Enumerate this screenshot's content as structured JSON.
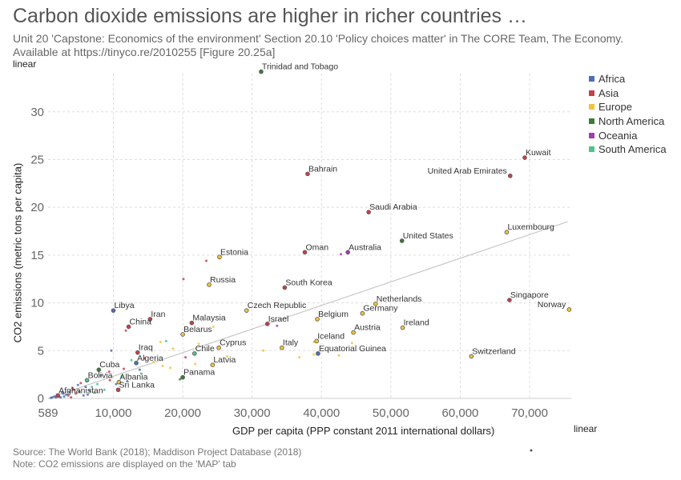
{
  "header": {
    "title": "Carbon dioxide emissions are higher in richer countries …",
    "subtitle": "Unit 20 'Capstone: Economics of the environment' Section 20.10 'Policy choices matter' in The CORE Team, The Economy. Available at https://tinyco.re/2010255 [Figure 20.25a]"
  },
  "controls": {
    "y_scale_label": "linear",
    "x_scale_label": "linear"
  },
  "footer": {
    "source": "Source: The World Bank (2018); Maddison Project Database (2018)",
    "note": "Note: CO2 emissions are displayed on the 'MAP' tab"
  },
  "colors": {
    "Africa": "#4c6fb4",
    "Asia": "#c4414b",
    "Europe": "#f2c33a",
    "North America": "#3e7a3a",
    "Oceania": "#a13bb0",
    "South America": "#4fc28a",
    "trend": "#c8c8c8",
    "grid": "#dddddd"
  },
  "chart_data": {
    "type": "scatter",
    "xlabel": "GDP per capita (PPP constant 2011 international dollars)",
    "ylabel": "CO2 emissions (metric tons per capita)",
    "xlim": [
      589,
      76000
    ],
    "ylim": [
      0,
      34
    ],
    "x_ticks": [
      {
        "value": 589,
        "label": "589"
      },
      {
        "value": 10000,
        "label": "10,000"
      },
      {
        "value": 20000,
        "label": "20,000"
      },
      {
        "value": 30000,
        "label": "30,000"
      },
      {
        "value": 40000,
        "label": "40,000"
      },
      {
        "value": 50000,
        "label": "50,000"
      },
      {
        "value": 60000,
        "label": "60,000"
      },
      {
        "value": 70000,
        "label": "70,000"
      }
    ],
    "y_ticks": [
      {
        "value": 0,
        "label": "0"
      },
      {
        "value": 5,
        "label": "5"
      },
      {
        "value": 10,
        "label": "10"
      },
      {
        "value": 15,
        "label": "15"
      },
      {
        "value": 20,
        "label": "20"
      },
      {
        "value": 25,
        "label": "25"
      },
      {
        "value": 30,
        "label": "30"
      }
    ],
    "grid": true,
    "legend_position": "top-right",
    "legend": [
      "Africa",
      "Asia",
      "Europe",
      "North America",
      "Oceania",
      "South America"
    ],
    "trend_line": {
      "x": [
        589,
        75500
      ],
      "y": [
        0,
        18.5
      ]
    },
    "labeled_points": [
      {
        "label": "Trinidad and Tobago",
        "x": 31300,
        "y": 34.2,
        "region": "North America"
      },
      {
        "label": "Kuwait",
        "x": 69300,
        "y": 25.2,
        "region": "Asia"
      },
      {
        "label": "United Arab Emirates",
        "x": 67200,
        "y": 23.3,
        "region": "Asia",
        "label_side": "left"
      },
      {
        "label": "Bahrain",
        "x": 38000,
        "y": 23.5,
        "region": "Asia"
      },
      {
        "label": "Saudi Arabia",
        "x": 46800,
        "y": 19.5,
        "region": "Asia"
      },
      {
        "label": "Luxembourg",
        "x": 66700,
        "y": 17.4,
        "region": "Europe"
      },
      {
        "label": "United States",
        "x": 51600,
        "y": 16.5,
        "region": "North America"
      },
      {
        "label": "Oman",
        "x": 37600,
        "y": 15.3,
        "region": "Asia"
      },
      {
        "label": "Australia",
        "x": 43800,
        "y": 15.3,
        "region": "Oceania"
      },
      {
        "label": "Estonia",
        "x": 25300,
        "y": 14.8,
        "region": "Europe"
      },
      {
        "label": "Russia",
        "x": 23800,
        "y": 11.9,
        "region": "Europe"
      },
      {
        "label": "South Korea",
        "x": 34700,
        "y": 11.6,
        "region": "Asia"
      },
      {
        "label": "Singapore",
        "x": 67100,
        "y": 10.3,
        "region": "Asia"
      },
      {
        "label": "Norway",
        "x": 75700,
        "y": 9.3,
        "region": "Europe",
        "label_side": "left"
      },
      {
        "label": "Netherlands",
        "x": 47800,
        "y": 9.9,
        "region": "Europe"
      },
      {
        "label": "Czech Republic",
        "x": 29200,
        "y": 9.2,
        "region": "Europe"
      },
      {
        "label": "Germany",
        "x": 45900,
        "y": 8.9,
        "region": "Europe"
      },
      {
        "label": "Libya",
        "x": 10000,
        "y": 9.2,
        "region": "Africa"
      },
      {
        "label": "Belgium",
        "x": 39400,
        "y": 8.3,
        "region": "Europe"
      },
      {
        "label": "Iran",
        "x": 15300,
        "y": 8.3,
        "region": "Asia"
      },
      {
        "label": "Malaysia",
        "x": 21300,
        "y": 7.9,
        "region": "Asia"
      },
      {
        "label": "Israel",
        "x": 32200,
        "y": 7.8,
        "region": "Asia"
      },
      {
        "label": "China",
        "x": 12200,
        "y": 7.5,
        "region": "Asia"
      },
      {
        "label": "Ireland",
        "x": 51700,
        "y": 7.4,
        "region": "Europe"
      },
      {
        "label": "Austria",
        "x": 44600,
        "y": 6.9,
        "region": "Europe"
      },
      {
        "label": "Belarus",
        "x": 20000,
        "y": 6.7,
        "region": "Europe"
      },
      {
        "label": "Iceland",
        "x": 39300,
        "y": 6.0,
        "region": "Europe"
      },
      {
        "label": "Italy",
        "x": 34300,
        "y": 5.3,
        "region": "Europe"
      },
      {
        "label": "Cyprus",
        "x": 25200,
        "y": 5.3,
        "region": "Europe"
      },
      {
        "label": "Iraq",
        "x": 13500,
        "y": 4.8,
        "region": "Asia"
      },
      {
        "label": "Chile",
        "x": 21700,
        "y": 4.7,
        "region": "South America"
      },
      {
        "label": "Equatorial Guinea",
        "x": 39500,
        "y": 4.7,
        "region": "Africa"
      },
      {
        "label": "Switzerland",
        "x": 61600,
        "y": 4.4,
        "region": "Europe"
      },
      {
        "label": "Algeria",
        "x": 13300,
        "y": 3.7,
        "region": "Africa"
      },
      {
        "label": "Latvia",
        "x": 24300,
        "y": 3.5,
        "region": "Europe"
      },
      {
        "label": "Cuba",
        "x": 7900,
        "y": 3.0,
        "region": "North America"
      },
      {
        "label": "Panama",
        "x": 20000,
        "y": 2.2,
        "region": "North America"
      },
      {
        "label": "Bolivia",
        "x": 6200,
        "y": 1.9,
        "region": "South America"
      },
      {
        "label": "Albania",
        "x": 10800,
        "y": 1.7,
        "region": "Europe"
      },
      {
        "label": "Sri Lanka",
        "x": 10700,
        "y": 0.9,
        "region": "Asia"
      },
      {
        "label": "Afghanistan",
        "x": 2000,
        "y": 0.3,
        "region": "Asia"
      }
    ],
    "other_points": [
      {
        "x": 23400,
        "y": 14.4,
        "region": "Asia"
      },
      {
        "x": 20100,
        "y": 12.5,
        "region": "Asia"
      },
      {
        "x": 42800,
        "y": 15.1,
        "region": "Oceania"
      },
      {
        "x": 33600,
        "y": 7.6,
        "region": "Oceania"
      },
      {
        "x": 11800,
        "y": 7.1,
        "region": "Asia"
      },
      {
        "x": 9700,
        "y": 5.0,
        "region": "Africa"
      },
      {
        "x": 16800,
        "y": 5.9,
        "region": "Europe"
      },
      {
        "x": 17600,
        "y": 6.0,
        "region": "South America"
      },
      {
        "x": 24400,
        "y": 7.5,
        "region": "Europe"
      },
      {
        "x": 38900,
        "y": 5.9,
        "region": "Europe"
      },
      {
        "x": 44400,
        "y": 5.8,
        "region": "Europe"
      },
      {
        "x": 38900,
        "y": 4.6,
        "region": "Europe"
      },
      {
        "x": 42500,
        "y": 4.5,
        "region": "Europe"
      },
      {
        "x": 36800,
        "y": 4.3,
        "region": "Europe"
      },
      {
        "x": 31600,
        "y": 5.0,
        "region": "Europe"
      },
      {
        "x": 26400,
        "y": 4.4,
        "region": "Europe"
      },
      {
        "x": 22300,
        "y": 5.7,
        "region": "Europe"
      },
      {
        "x": 18600,
        "y": 5.2,
        "region": "Europe"
      },
      {
        "x": 20400,
        "y": 4.3,
        "region": "Asia"
      },
      {
        "x": 21800,
        "y": 3.6,
        "region": "Europe"
      },
      {
        "x": 17100,
        "y": 3.4,
        "region": "Europe"
      },
      {
        "x": 15800,
        "y": 3.8,
        "region": "Europe"
      },
      {
        "x": 18200,
        "y": 3.2,
        "region": "Europe"
      },
      {
        "x": 14500,
        "y": 4.2,
        "region": "Asia"
      },
      {
        "x": 12600,
        "y": 4.0,
        "region": "South America"
      },
      {
        "x": 14000,
        "y": 2.6,
        "region": "South America"
      },
      {
        "x": 13800,
        "y": 3.0,
        "region": "Africa"
      },
      {
        "x": 19600,
        "y": 2.0,
        "region": "North America"
      },
      {
        "x": 11500,
        "y": 3.1,
        "region": "Asia"
      },
      {
        "x": 9400,
        "y": 2.8,
        "region": "Asia"
      },
      {
        "x": 8200,
        "y": 2.4,
        "region": "Africa"
      },
      {
        "x": 11200,
        "y": 2.3,
        "region": "South America"
      },
      {
        "x": 12000,
        "y": 1.8,
        "region": "Africa"
      },
      {
        "x": 9500,
        "y": 1.9,
        "region": "Asia"
      },
      {
        "x": 7700,
        "y": 1.5,
        "region": "South America"
      },
      {
        "x": 10400,
        "y": 1.5,
        "region": "Africa"
      },
      {
        "x": 6900,
        "y": 1.2,
        "region": "South America"
      },
      {
        "x": 5300,
        "y": 1.6,
        "region": "Asia"
      },
      {
        "x": 4900,
        "y": 1.4,
        "region": "Africa"
      },
      {
        "x": 6000,
        "y": 1.2,
        "region": "Africa"
      },
      {
        "x": 8700,
        "y": 0.9,
        "region": "South America"
      },
      {
        "x": 6600,
        "y": 0.8,
        "region": "Africa"
      },
      {
        "x": 4300,
        "y": 0.9,
        "region": "Asia"
      },
      {
        "x": 3700,
        "y": 0.7,
        "region": "Africa"
      },
      {
        "x": 4600,
        "y": 0.5,
        "region": "Asia"
      },
      {
        "x": 3200,
        "y": 0.4,
        "region": "Africa"
      },
      {
        "x": 2600,
        "y": 0.6,
        "region": "Africa"
      },
      {
        "x": 3500,
        "y": 0.3,
        "region": "Asia"
      },
      {
        "x": 2200,
        "y": 0.2,
        "region": "Africa"
      },
      {
        "x": 1700,
        "y": 0.1,
        "region": "Africa"
      },
      {
        "x": 1500,
        "y": 0.2,
        "region": "Africa"
      },
      {
        "x": 1200,
        "y": 0.1,
        "region": "Africa"
      },
      {
        "x": 2400,
        "y": 0.1,
        "region": "Africa"
      },
      {
        "x": 2900,
        "y": 0.2,
        "region": "Africa"
      },
      {
        "x": 1900,
        "y": 0.4,
        "region": "Africa"
      },
      {
        "x": 3900,
        "y": 0.1,
        "region": "Asia"
      },
      {
        "x": 5700,
        "y": 0.3,
        "region": "Africa"
      },
      {
        "x": 1000,
        "y": 0.05,
        "region": "Africa"
      },
      {
        "x": 2800,
        "y": 0.5,
        "region": "Africa"
      },
      {
        "x": 4100,
        "y": 1.1,
        "region": "Asia"
      },
      {
        "x": 5100,
        "y": 0.7,
        "region": "North America"
      },
      {
        "x": 7300,
        "y": 0.6,
        "region": "South America"
      },
      {
        "x": 6300,
        "y": 0.4,
        "region": "Africa"
      }
    ]
  }
}
